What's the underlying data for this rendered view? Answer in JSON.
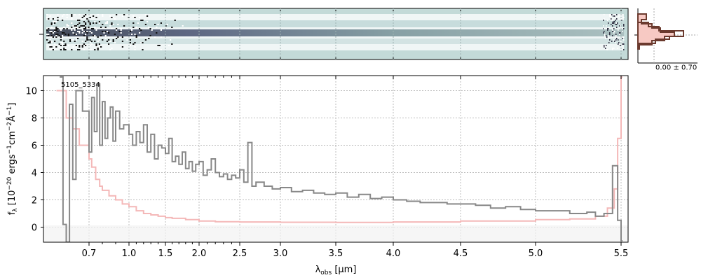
{
  "chart_data": {
    "type": "line",
    "object_id": "5105_5334",
    "xlabel": "λ_obs [μm]",
    "ylabel": "f_λ [10^-20 ergs^-1 cm^-2 Å^-1]",
    "ylim": [
      -1.1,
      11.1
    ],
    "yticks": [
      0,
      2,
      4,
      6,
      8,
      10
    ],
    "xticks": [
      0.7,
      1.0,
      1.5,
      2.0,
      2.5,
      3.0,
      3.5,
      4.0,
      4.5,
      5.0,
      5.5
    ],
    "xticks_minor": [
      0.8,
      0.9,
      1.1,
      1.2,
      1.3,
      1.4,
      1.6,
      1.7,
      1.8,
      1.9,
      2.1,
      2.2,
      2.3,
      2.4
    ],
    "grid": true,
    "inset_label": "0.00 ± 0.70",
    "series": [
      {
        "role": "flux",
        "color": "#888888",
        "x": [
          0.61,
          0.62,
          0.63,
          0.64,
          0.65,
          0.66,
          0.68,
          0.7,
          0.72,
          0.74,
          0.76,
          0.78,
          0.8,
          0.82,
          0.84,
          0.86,
          0.88,
          0.9,
          0.93,
          0.96,
          1.0,
          1.05,
          1.1,
          1.15,
          1.2,
          1.25,
          1.3,
          1.35,
          1.4,
          1.45,
          1.5,
          1.55,
          1.6,
          1.65,
          1.7,
          1.75,
          1.8,
          1.85,
          1.9,
          1.95,
          2.0,
          2.05,
          2.1,
          2.15,
          2.2,
          2.25,
          2.3,
          2.35,
          2.4,
          2.45,
          2.5,
          2.55,
          2.6,
          2.65,
          2.7,
          2.8,
          2.9,
          3.0,
          3.1,
          3.2,
          3.3,
          3.4,
          3.5,
          3.6,
          3.7,
          3.8,
          3.9,
          4.0,
          4.1,
          4.2,
          4.3,
          4.4,
          4.5,
          4.6,
          4.7,
          4.8,
          4.9,
          5.0,
          5.1,
          5.2,
          5.3,
          5.35,
          5.4,
          5.45,
          5.48,
          5.5
        ],
        "y": [
          11.0,
          0.2,
          -1.1,
          9.0,
          3.5,
          10.0,
          8.5,
          5.5,
          9.5,
          7.0,
          10.5,
          6.0,
          9.2,
          6.5,
          8.0,
          8.8,
          6.3,
          8.5,
          7.2,
          7.5,
          6.8,
          6.0,
          7.0,
          6.2,
          7.5,
          5.5,
          6.8,
          5.0,
          6.0,
          5.8,
          5.4,
          6.5,
          4.8,
          5.2,
          4.6,
          5.5,
          4.3,
          4.8,
          4.1,
          4.6,
          4.8,
          3.8,
          4.2,
          5.0,
          4.0,
          3.7,
          3.9,
          3.5,
          3.8,
          3.6,
          4.2,
          3.3,
          6.2,
          3.0,
          3.3,
          3.0,
          2.8,
          2.9,
          2.6,
          2.7,
          2.5,
          2.4,
          2.5,
          2.2,
          2.4,
          2.1,
          2.2,
          2.0,
          1.9,
          1.8,
          1.8,
          1.7,
          1.7,
          1.6,
          1.4,
          1.5,
          1.3,
          1.2,
          1.2,
          1.0,
          1.1,
          0.8,
          1.0,
          4.5,
          0.5,
          -1.0
        ]
      },
      {
        "role": "error",
        "color": "#f4b8b8",
        "x": [
          0.6,
          0.63,
          0.65,
          0.67,
          0.7,
          0.72,
          0.75,
          0.78,
          0.8,
          0.85,
          0.9,
          0.95,
          1.0,
          1.1,
          1.2,
          1.3,
          1.4,
          1.5,
          1.6,
          1.8,
          2.0,
          2.2,
          2.5,
          3.0,
          3.5,
          4.0,
          4.5,
          5.0,
          5.2,
          5.35,
          5.42,
          5.46,
          5.48,
          5.5
        ],
        "y": [
          10.0,
          8.0,
          7.2,
          6.0,
          5.0,
          4.4,
          3.5,
          3.0,
          2.7,
          2.3,
          2.0,
          1.7,
          1.5,
          1.2,
          1.0,
          0.9,
          0.8,
          0.7,
          0.65,
          0.55,
          0.45,
          0.4,
          0.38,
          0.36,
          0.35,
          0.38,
          0.45,
          0.55,
          0.6,
          0.8,
          1.4,
          2.8,
          6.5,
          11.0
        ]
      }
    ]
  }
}
